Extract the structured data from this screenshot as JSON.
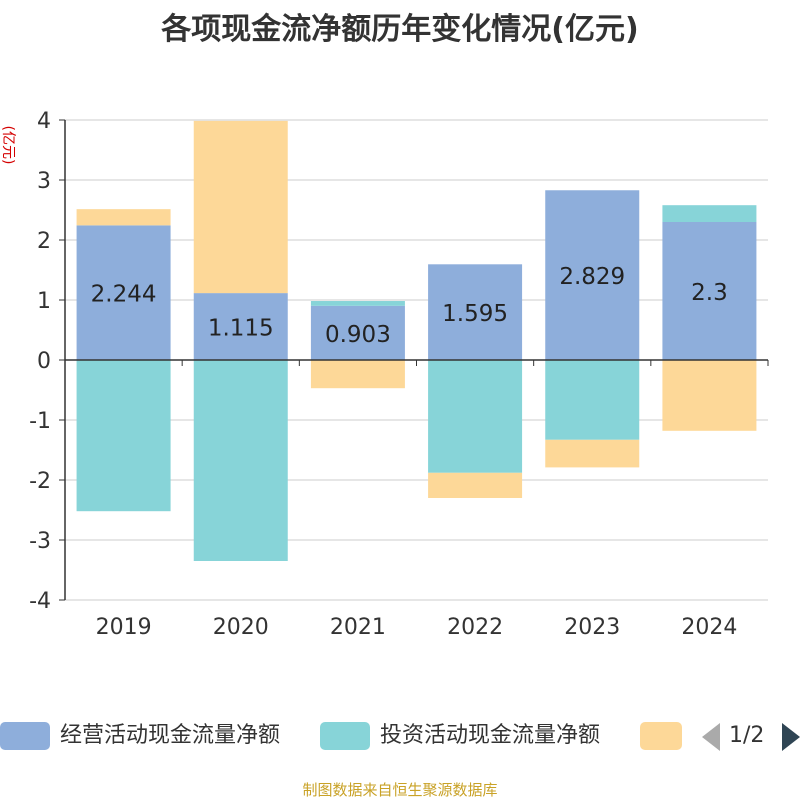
{
  "chart_data": {
    "type": "bar",
    "stacked": true,
    "title": "各项现金流净额历年变化情况(亿元)",
    "ylabel": "(亿元)",
    "xlabel": "",
    "categories": [
      "2019",
      "2020",
      "2021",
      "2022",
      "2023",
      "2024"
    ],
    "ylim": [
      -4,
      4
    ],
    "yticks": [
      -4,
      -3,
      -2,
      -1,
      0,
      1,
      2,
      3,
      4
    ],
    "grid": true,
    "series": [
      {
        "name": "经营活动现金流量净额",
        "color": "#8eaedb",
        "values": [
          2.244,
          1.115,
          0.903,
          1.595,
          2.829,
          2.3
        ],
        "show_labels": true
      },
      {
        "name": "投资活动现金流量净额",
        "color": "#87d4d8",
        "values": [
          -2.52,
          -3.35,
          0.08,
          -1.88,
          -1.33,
          0.28
        ],
        "show_labels": false
      },
      {
        "name": "",
        "color": "#fdd898",
        "values": [
          0.27,
          2.87,
          -0.47,
          -0.42,
          -0.46,
          -1.18
        ],
        "show_labels": false
      }
    ],
    "legend_position": "bottom"
  },
  "legend": {
    "page_indicator": "1/2"
  },
  "source_note": "制图数据来自恒生聚源数据库"
}
